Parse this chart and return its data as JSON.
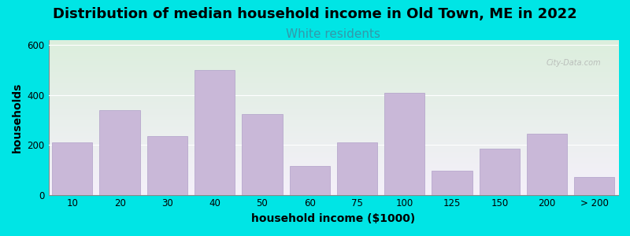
{
  "title": "Distribution of median household income in Old Town, ME in 2022",
  "subtitle": "White residents",
  "xlabel": "household income ($1000)",
  "ylabel": "households",
  "bar_labels": [
    "10",
    "20",
    "30",
    "40",
    "50",
    "60",
    "75",
    "100",
    "125",
    "150",
    "200",
    "> 200"
  ],
  "bar_values": [
    210,
    340,
    235,
    500,
    325,
    115,
    210,
    410,
    95,
    185,
    245,
    70
  ],
  "bar_color": "#c9b8d8",
  "bar_edge_color": "#b0a0c8",
  "ylim": [
    0,
    620
  ],
  "yticks": [
    0,
    200,
    400,
    600
  ],
  "background_color": "#00e5e5",
  "plot_bg_top": "#e8f0e0",
  "plot_bg_bottom": "#f8f4fc",
  "title_fontsize": 13,
  "subtitle_fontsize": 11,
  "subtitle_color": "#3399aa",
  "axis_label_fontsize": 10,
  "tick_fontsize": 8.5
}
